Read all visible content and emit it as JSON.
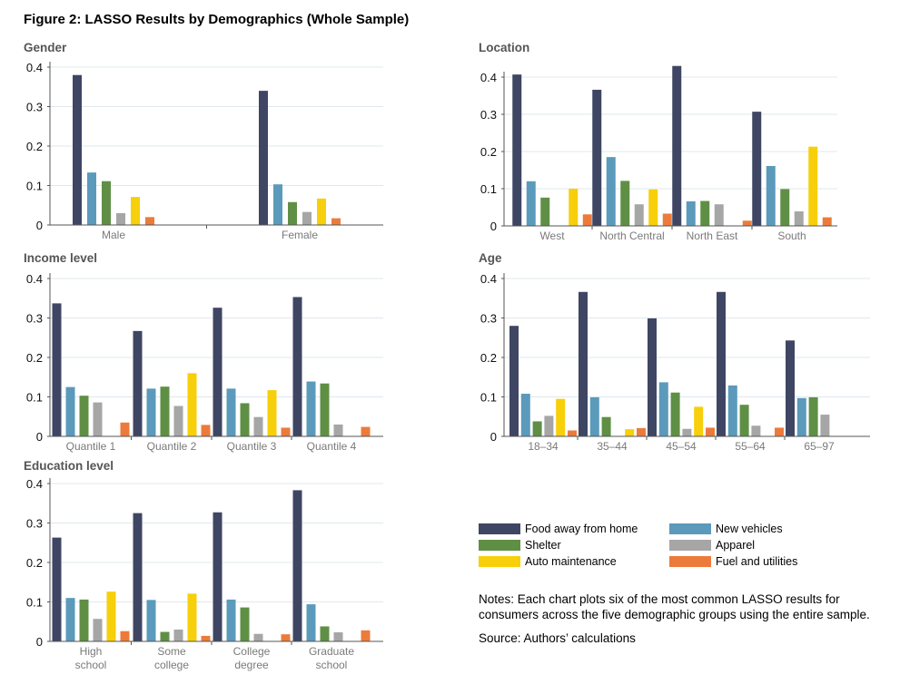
{
  "figure_title": "Figure 2: LASSO Results by Demographics (Whole Sample)",
  "notes": "Notes: Each chart plots six of the most common LASSO results for consumers across the five demographic groups using the entire sample.",
  "source": "Source: Authors’ calculations",
  "legend": [
    {
      "name": "Food away from home",
      "color": "#3f4663"
    },
    {
      "name": "New vehicles",
      "color": "#5b9abb"
    },
    {
      "name": "Shelter",
      "color": "#5f8f45"
    },
    {
      "name": "Apparel",
      "color": "#a6a6a6"
    },
    {
      "name": "Auto maintenance",
      "color": "#f7cf0a"
    },
    {
      "name": "Fuel and utilities",
      "color": "#ec7b3b"
    }
  ],
  "chart_data": [
    {
      "type": "bar",
      "title": "Gender",
      "categories": [
        [
          "Male"
        ],
        [
          "Female"
        ]
      ],
      "ylim": [
        0,
        0.4
      ],
      "yticks": [
        "0",
        "0.1",
        "0.2",
        "0.3",
        "0.4"
      ],
      "grid": true,
      "series": [
        {
          "name": "Food away from home",
          "values": [
            0.38,
            0.34
          ]
        },
        {
          "name": "New vehicles",
          "values": [
            0.133,
            0.103
          ]
        },
        {
          "name": "Shelter",
          "values": [
            0.111,
            0.058
          ]
        },
        {
          "name": "Apparel",
          "values": [
            0.03,
            0.033
          ]
        },
        {
          "name": "Auto maintenance",
          "values": [
            0.071,
            0.067
          ]
        },
        {
          "name": "Fuel and utilities",
          "values": [
            0.02,
            0.017
          ]
        }
      ]
    },
    {
      "type": "bar",
      "title": "Location",
      "categories": [
        [
          "West"
        ],
        [
          "North Central"
        ],
        [
          "North East"
        ],
        [
          "South"
        ]
      ],
      "ylim": [
        0,
        0.4
      ],
      "yticks": [
        "0",
        "0.1",
        "0.2",
        "0.3",
        "0.4"
      ],
      "grid": true,
      "series": [
        {
          "name": "Food away from home",
          "values": [
            0.407,
            0.366,
            0.43,
            0.307
          ]
        },
        {
          "name": "New vehicles",
          "values": [
            0.12,
            0.185,
            0.066,
            0.161
          ]
        },
        {
          "name": "Shelter",
          "values": [
            0.076,
            0.121,
            0.067,
            0.099
          ]
        },
        {
          "name": "Apparel",
          "values": [
            0,
            0.058,
            0.058,
            0.039
          ]
        },
        {
          "name": "Auto maintenance",
          "values": [
            0.1,
            0.098,
            0,
            0.213
          ]
        },
        {
          "name": "Fuel and utilities",
          "values": [
            0.031,
            0.033,
            0.014,
            0.023
          ]
        }
      ]
    },
    {
      "type": "bar",
      "title": "Income level",
      "categories": [
        [
          "Quantile 1"
        ],
        [
          "Quantile 2"
        ],
        [
          "Quantile 3"
        ],
        [
          "Quantile 4"
        ]
      ],
      "ylim": [
        0,
        0.4
      ],
      "yticks": [
        "0",
        "0.1",
        "0.2",
        "0.3",
        "0.4"
      ],
      "grid": true,
      "series": [
        {
          "name": "Food away from home",
          "values": [
            0.337,
            0.267,
            0.326,
            0.353
          ]
        },
        {
          "name": "New vehicles",
          "values": [
            0.125,
            0.121,
            0.121,
            0.139
          ]
        },
        {
          "name": "Shelter",
          "values": [
            0.103,
            0.126,
            0.084,
            0.134
          ]
        },
        {
          "name": "Apparel",
          "values": [
            0.086,
            0.077,
            0.049,
            0.03
          ]
        },
        {
          "name": "Auto maintenance",
          "values": [
            0,
            0.16,
            0.117,
            0
          ]
        },
        {
          "name": "Fuel and utilities",
          "values": [
            0.035,
            0.029,
            0.022,
            0.024
          ]
        }
      ]
    },
    {
      "type": "bar",
      "title": "Age",
      "categories": [
        [
          "18–34"
        ],
        [
          "35–44"
        ],
        [
          "45–54"
        ],
        [
          "55–64"
        ],
        [
          "65–97"
        ]
      ],
      "ylim": [
        0,
        0.4
      ],
      "yticks": [
        "0",
        "0.1",
        "0.2",
        "0.3",
        "0.4"
      ],
      "grid": true,
      "series": [
        {
          "name": "Food away from home",
          "values": [
            0.28,
            0.366,
            0.299,
            0.366,
            0.243
          ]
        },
        {
          "name": "New vehicles",
          "values": [
            0.108,
            0.099,
            0.137,
            0.129,
            0.097
          ]
        },
        {
          "name": "Shelter",
          "values": [
            0.038,
            0.049,
            0.111,
            0.08,
            0.099
          ]
        },
        {
          "name": "Apparel",
          "values": [
            0.052,
            0,
            0.019,
            0.027,
            0.055
          ]
        },
        {
          "name": "Auto maintenance",
          "values": [
            0.095,
            0.018,
            0.075,
            0,
            0
          ]
        },
        {
          "name": "Fuel and utilities",
          "values": [
            0.015,
            0.021,
            0.022,
            0.022,
            0
          ]
        }
      ]
    },
    {
      "type": "bar",
      "title": "Education level",
      "categories": [
        [
          "High",
          "school"
        ],
        [
          "Some",
          "college"
        ],
        [
          "College",
          "degree"
        ],
        [
          "Graduate",
          "school"
        ]
      ],
      "ylim": [
        0,
        0.4
      ],
      "yticks": [
        "0",
        "0.1",
        "0.2",
        "0.3",
        "0.4"
      ],
      "grid": true,
      "series": [
        {
          "name": "Food away from home",
          "values": [
            0.263,
            0.325,
            0.327,
            0.383
          ]
        },
        {
          "name": "New vehicles",
          "values": [
            0.11,
            0.105,
            0.106,
            0.094
          ]
        },
        {
          "name": "Shelter",
          "values": [
            0.106,
            0.024,
            0.086,
            0.038
          ]
        },
        {
          "name": "Apparel",
          "values": [
            0.057,
            0.03,
            0.019,
            0.023
          ]
        },
        {
          "name": "Auto maintenance",
          "values": [
            0.126,
            0.121,
            0,
            0
          ]
        },
        {
          "name": "Fuel and utilities",
          "values": [
            0.026,
            0.014,
            0.018,
            0.028
          ]
        }
      ]
    }
  ]
}
